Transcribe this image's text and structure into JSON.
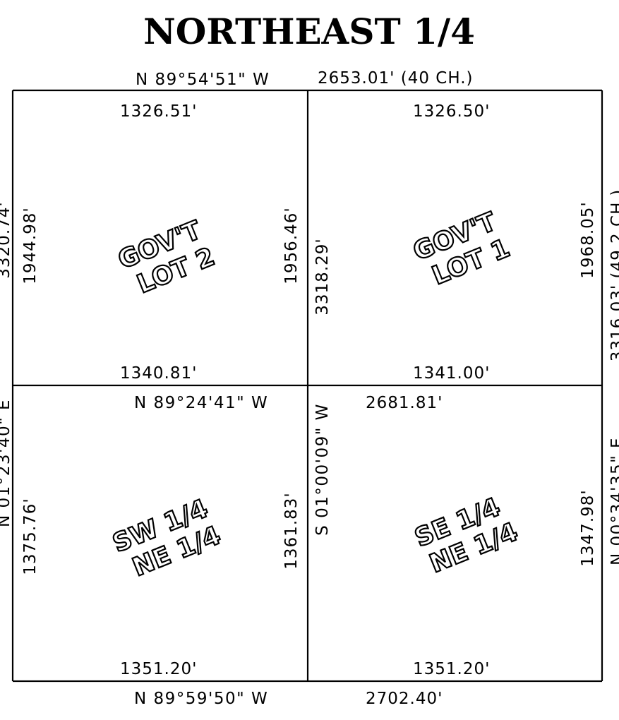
{
  "title": "NORTHEAST 1/4",
  "north": {
    "bearing": "N 89°54'51\" W",
    "distance": "2653.01' (40 CH.)"
  },
  "center": {
    "bearing": "N 89°24'41\" W",
    "distance": "2681.81'"
  },
  "south": {
    "bearing": "N 89°59'50\" W",
    "distance": "2702.40'"
  },
  "west": {
    "total": "3320.74'",
    "bearing": "N 01°23'40\" E"
  },
  "east": {
    "total": "3316.03' (49.2 CH.)",
    "bearing": "N 00°34'35\" E"
  },
  "middle": {
    "total": "3318.29'",
    "bearing": "S 01°00'09\" W"
  },
  "parcels": {
    "nw": {
      "line1": "GOV'T",
      "line2": "LOT 2",
      "top": "1326.51'",
      "bottom": "1340.81'",
      "left": "1944.98'",
      "right": "1956.46'"
    },
    "ne": {
      "line1": "GOV'T",
      "line2": "LOT 1",
      "top": "1326.50'",
      "bottom": "1341.00'",
      "left": "3318.29'",
      "right": "1968.05'"
    },
    "sw": {
      "line1": "SW 1/4",
      "line2": "NE 1/4",
      "bottom": "1351.20'",
      "left": "1375.76'",
      "right": "1361.83'"
    },
    "se": {
      "line1": "SE 1/4",
      "line2": "NE 1/4",
      "bottom": "1351.20'",
      "right": "1347.98'"
    }
  }
}
